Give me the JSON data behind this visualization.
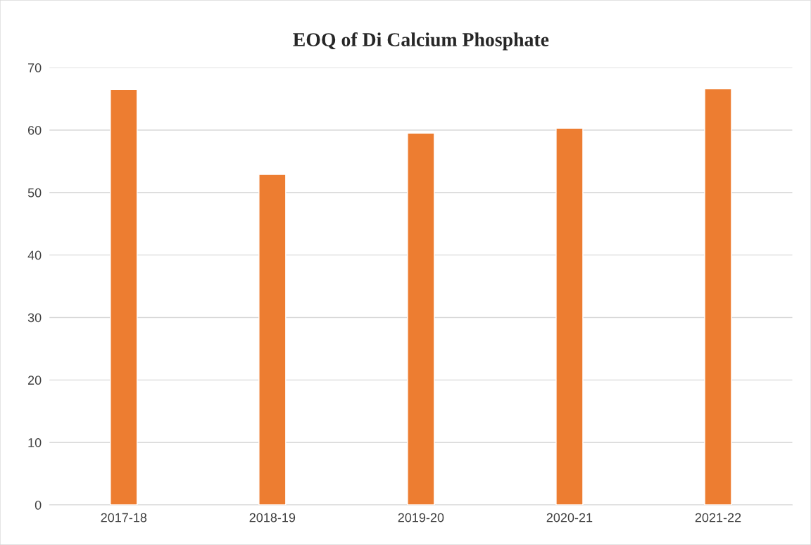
{
  "chart_data": {
    "type": "bar",
    "title": "EOQ of Di Calcium Phosphate",
    "categories": [
      "2017-18",
      "2018-19",
      "2019-20",
      "2020-21",
      "2021-22"
    ],
    "values": [
      66.5,
      52.9,
      59.5,
      60.3,
      66.6
    ],
    "color": "#ed7d31",
    "ylim": [
      0,
      70
    ],
    "yticks": [
      0,
      10,
      20,
      30,
      40,
      50,
      60,
      70
    ],
    "grid": "y",
    "legend": false
  }
}
